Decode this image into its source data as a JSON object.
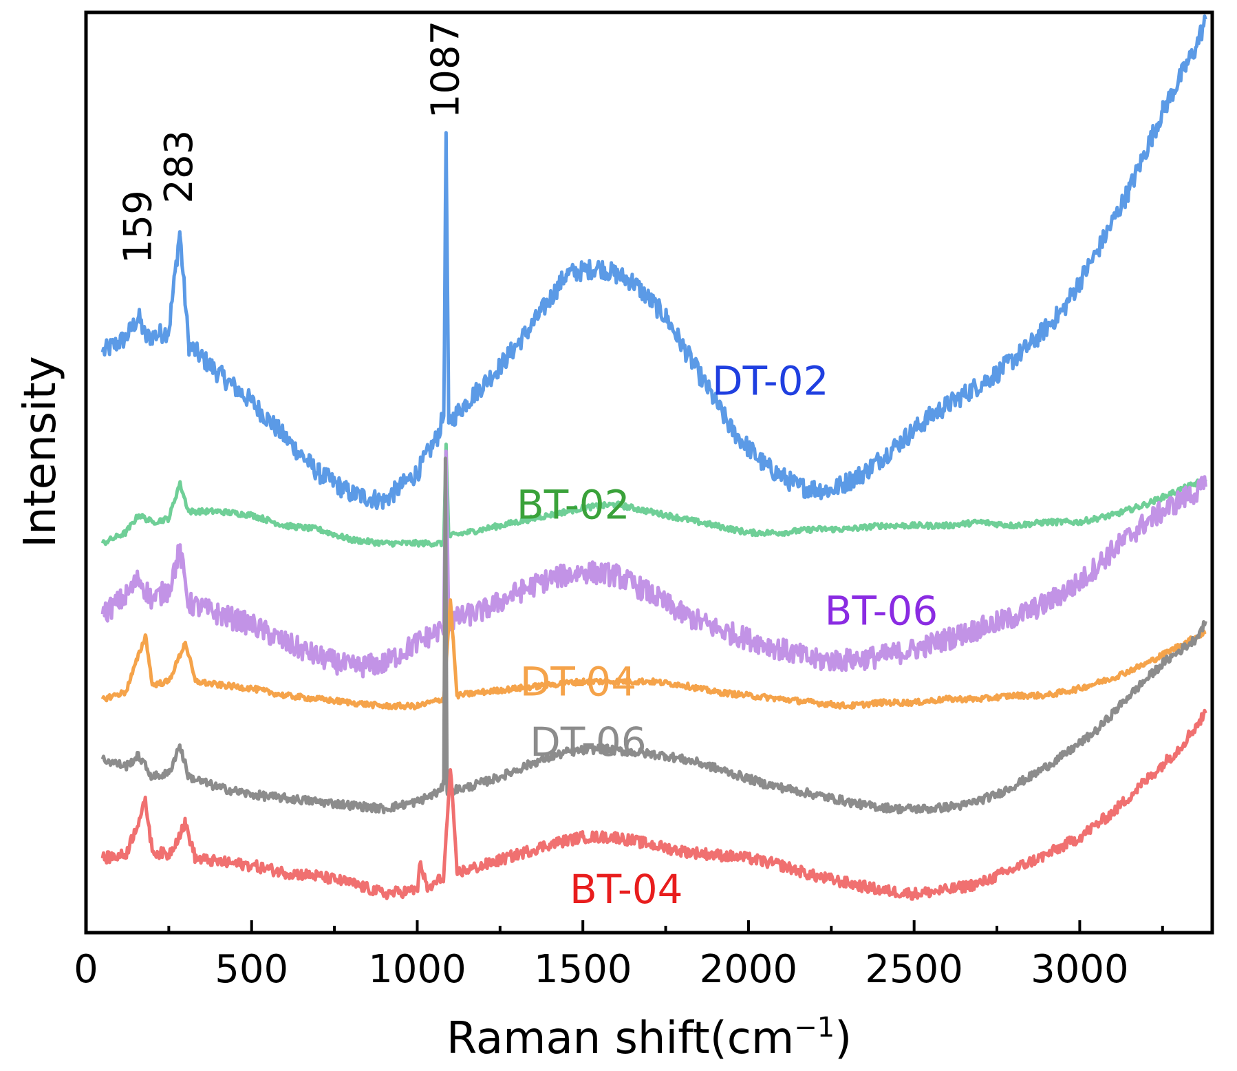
{
  "chart_data": {
    "type": "line",
    "title": "",
    "xlabel": "Raman shift(cm",
    "xlabel_sup": "−1",
    "xlabel_close": ")",
    "ylabel": "Intensity",
    "xlim": [
      0,
      3400
    ],
    "ylim": [
      0,
      13
    ],
    "x_ticks": [
      0,
      500,
      1000,
      1500,
      2000,
      2500,
      3000
    ],
    "x_tick_labels": [
      "0",
      "500",
      "1000",
      "1500",
      "2000",
      "2500",
      "3000"
    ],
    "y_ticks_shown": false,
    "peak_labels": [
      {
        "text": "159",
        "x": 159,
        "y": 9.45
      },
      {
        "text": "283",
        "x": 283,
        "y": 10.3
      },
      {
        "text": "1087",
        "x": 1087,
        "y": 11.5
      }
    ],
    "series": [
      {
        "name": "DT-02",
        "color": "#5b9ae6",
        "label_color": "#1f3fe0",
        "label_pos": {
          "x": 1890,
          "y": 7.6
        },
        "points": [
          [
            50,
            8.2
          ],
          [
            120,
            8.4
          ],
          [
            159,
            8.7
          ],
          [
            180,
            8.4
          ],
          [
            250,
            8.5
          ],
          [
            283,
            9.9
          ],
          [
            310,
            8.3
          ],
          [
            400,
            7.9
          ],
          [
            500,
            7.5
          ],
          [
            600,
            7.0
          ],
          [
            700,
            6.5
          ],
          [
            800,
            6.2
          ],
          [
            900,
            6.1
          ],
          [
            1000,
            6.5
          ],
          [
            1060,
            7.0
          ],
          [
            1080,
            7.3
          ],
          [
            1087,
            11.3
          ],
          [
            1095,
            7.2
          ],
          [
            1150,
            7.5
          ],
          [
            1250,
            8.0
          ],
          [
            1350,
            8.6
          ],
          [
            1450,
            9.3
          ],
          [
            1550,
            9.4
          ],
          [
            1650,
            9.2
          ],
          [
            1750,
            8.7
          ],
          [
            1850,
            7.9
          ],
          [
            1950,
            7.1
          ],
          [
            2050,
            6.6
          ],
          [
            2150,
            6.3
          ],
          [
            2250,
            6.25
          ],
          [
            2350,
            6.5
          ],
          [
            2450,
            6.9
          ],
          [
            2550,
            7.3
          ],
          [
            2650,
            7.6
          ],
          [
            2750,
            7.9
          ],
          [
            2850,
            8.3
          ],
          [
            2950,
            8.8
          ],
          [
            3050,
            9.6
          ],
          [
            3150,
            10.5
          ],
          [
            3250,
            11.6
          ],
          [
            3350,
            12.5
          ],
          [
            3380,
            12.9
          ]
        ]
      },
      {
        "name": "BT-02",
        "color": "#6fcf97",
        "label_color": "#3aa23a",
        "label_pos": {
          "x": 1300,
          "y": 5.85
        },
        "points": [
          [
            50,
            5.5
          ],
          [
            120,
            5.65
          ],
          [
            159,
            5.9
          ],
          [
            200,
            5.8
          ],
          [
            250,
            5.85
          ],
          [
            283,
            6.35
          ],
          [
            310,
            5.95
          ],
          [
            400,
            5.95
          ],
          [
            500,
            5.9
          ],
          [
            600,
            5.75
          ],
          [
            700,
            5.7
          ],
          [
            800,
            5.55
          ],
          [
            900,
            5.5
          ],
          [
            1000,
            5.5
          ],
          [
            1080,
            5.5
          ],
          [
            1087,
            6.9
          ],
          [
            1095,
            5.6
          ],
          [
            1200,
            5.7
          ],
          [
            1300,
            5.8
          ],
          [
            1400,
            5.9
          ],
          [
            1500,
            6.0
          ],
          [
            1600,
            6.05
          ],
          [
            1700,
            5.95
          ],
          [
            1800,
            5.85
          ],
          [
            1900,
            5.75
          ],
          [
            2000,
            5.65
          ],
          [
            2100,
            5.65
          ],
          [
            2200,
            5.7
          ],
          [
            2300,
            5.7
          ],
          [
            2400,
            5.75
          ],
          [
            2500,
            5.75
          ],
          [
            2600,
            5.75
          ],
          [
            2700,
            5.8
          ],
          [
            2800,
            5.75
          ],
          [
            2900,
            5.8
          ],
          [
            3000,
            5.8
          ],
          [
            3100,
            5.9
          ],
          [
            3200,
            6.05
          ],
          [
            3300,
            6.25
          ],
          [
            3380,
            6.4
          ]
        ]
      },
      {
        "name": "BT-06",
        "color": "#c293e6",
        "label_color": "#8a2be2",
        "label_pos": {
          "x": 2230,
          "y": 4.35
        },
        "points": [
          [
            50,
            4.5
          ],
          [
            120,
            4.75
          ],
          [
            159,
            5.0
          ],
          [
            200,
            4.7
          ],
          [
            250,
            4.85
          ],
          [
            283,
            5.4
          ],
          [
            310,
            4.65
          ],
          [
            400,
            4.5
          ],
          [
            500,
            4.35
          ],
          [
            600,
            4.1
          ],
          [
            700,
            3.9
          ],
          [
            800,
            3.75
          ],
          [
            900,
            3.8
          ],
          [
            1000,
            4.1
          ],
          [
            1080,
            4.3
          ],
          [
            1087,
            6.8
          ],
          [
            1095,
            4.4
          ],
          [
            1200,
            4.55
          ],
          [
            1300,
            4.8
          ],
          [
            1400,
            5.0
          ],
          [
            1500,
            5.1
          ],
          [
            1600,
            5.05
          ],
          [
            1700,
            4.8
          ],
          [
            1800,
            4.5
          ],
          [
            1900,
            4.3
          ],
          [
            2000,
            4.15
          ],
          [
            2100,
            4.0
          ],
          [
            2200,
            3.85
          ],
          [
            2300,
            3.85
          ],
          [
            2400,
            3.9
          ],
          [
            2500,
            4.0
          ],
          [
            2600,
            4.15
          ],
          [
            2700,
            4.3
          ],
          [
            2800,
            4.45
          ],
          [
            2900,
            4.65
          ],
          [
            3000,
            4.95
          ],
          [
            3100,
            5.4
          ],
          [
            3200,
            5.8
          ],
          [
            3300,
            6.1
          ],
          [
            3380,
            6.3
          ]
        ]
      },
      {
        "name": "DT-04",
        "color": "#f5a34a",
        "label_color": "#f5a34a",
        "label_pos": {
          "x": 1310,
          "y": 3.35
        },
        "points": [
          [
            50,
            3.3
          ],
          [
            120,
            3.4
          ],
          [
            180,
            4.2
          ],
          [
            200,
            3.5
          ],
          [
            250,
            3.55
          ],
          [
            300,
            4.1
          ],
          [
            330,
            3.55
          ],
          [
            400,
            3.5
          ],
          [
            500,
            3.45
          ],
          [
            600,
            3.35
          ],
          [
            700,
            3.3
          ],
          [
            800,
            3.25
          ],
          [
            900,
            3.2
          ],
          [
            1000,
            3.2
          ],
          [
            1080,
            3.3
          ],
          [
            1100,
            4.7
          ],
          [
            1120,
            3.35
          ],
          [
            1200,
            3.4
          ],
          [
            1300,
            3.45
          ],
          [
            1400,
            3.5
          ],
          [
            1500,
            3.55
          ],
          [
            1600,
            3.55
          ],
          [
            1700,
            3.55
          ],
          [
            1800,
            3.5
          ],
          [
            1900,
            3.4
          ],
          [
            2000,
            3.35
          ],
          [
            2100,
            3.3
          ],
          [
            2200,
            3.25
          ],
          [
            2300,
            3.2
          ],
          [
            2400,
            3.25
          ],
          [
            2500,
            3.25
          ],
          [
            2600,
            3.3
          ],
          [
            2700,
            3.3
          ],
          [
            2800,
            3.35
          ],
          [
            2900,
            3.35
          ],
          [
            3000,
            3.45
          ],
          [
            3100,
            3.6
          ],
          [
            3200,
            3.8
          ],
          [
            3300,
            4.05
          ],
          [
            3380,
            4.25
          ]
        ]
      },
      {
        "name": "DT-06",
        "color": "#8c8c8c",
        "label_color": "#8c8c8c",
        "label_pos": {
          "x": 1340,
          "y": 2.5
        },
        "points": [
          [
            50,
            2.45
          ],
          [
            120,
            2.35
          ],
          [
            159,
            2.5
          ],
          [
            200,
            2.2
          ],
          [
            250,
            2.25
          ],
          [
            283,
            2.65
          ],
          [
            310,
            2.2
          ],
          [
            400,
            2.05
          ],
          [
            500,
            1.95
          ],
          [
            600,
            1.9
          ],
          [
            700,
            1.85
          ],
          [
            800,
            1.8
          ],
          [
            900,
            1.75
          ],
          [
            1000,
            1.85
          ],
          [
            1070,
            2.0
          ],
          [
            1080,
            2.1
          ],
          [
            1085,
            6.7
          ],
          [
            1090,
            2.0
          ],
          [
            1150,
            2.05
          ],
          [
            1250,
            2.2
          ],
          [
            1350,
            2.4
          ],
          [
            1450,
            2.55
          ],
          [
            1550,
            2.6
          ],
          [
            1650,
            2.55
          ],
          [
            1750,
            2.5
          ],
          [
            1850,
            2.4
          ],
          [
            1950,
            2.25
          ],
          [
            2050,
            2.1
          ],
          [
            2150,
            2.0
          ],
          [
            2250,
            1.9
          ],
          [
            2350,
            1.8
          ],
          [
            2450,
            1.75
          ],
          [
            2550,
            1.75
          ],
          [
            2650,
            1.8
          ],
          [
            2750,
            1.95
          ],
          [
            2850,
            2.2
          ],
          [
            2950,
            2.5
          ],
          [
            3050,
            2.85
          ],
          [
            3150,
            3.35
          ],
          [
            3250,
            3.8
          ],
          [
            3350,
            4.15
          ],
          [
            3380,
            4.4
          ]
        ]
      },
      {
        "name": "BT-04",
        "color": "#f07070",
        "label_color": "#e81d1d",
        "label_pos": {
          "x": 1460,
          "y": 0.42
        },
        "points": [
          [
            50,
            1.05
          ],
          [
            120,
            1.1
          ],
          [
            180,
            1.85
          ],
          [
            200,
            1.15
          ],
          [
            250,
            1.1
          ],
          [
            300,
            1.55
          ],
          [
            330,
            1.05
          ],
          [
            400,
            1.0
          ],
          [
            500,
            0.95
          ],
          [
            600,
            0.85
          ],
          [
            700,
            0.8
          ],
          [
            800,
            0.7
          ],
          [
            900,
            0.55
          ],
          [
            1000,
            0.6
          ],
          [
            1010,
            1.0
          ],
          [
            1030,
            0.6
          ],
          [
            1080,
            0.8
          ],
          [
            1100,
            2.3
          ],
          [
            1120,
            0.85
          ],
          [
            1200,
            0.95
          ],
          [
            1300,
            1.1
          ],
          [
            1400,
            1.25
          ],
          [
            1500,
            1.35
          ],
          [
            1600,
            1.35
          ],
          [
            1700,
            1.25
          ],
          [
            1800,
            1.15
          ],
          [
            1900,
            1.1
          ],
          [
            2000,
            1.05
          ],
          [
            2100,
            0.95
          ],
          [
            2200,
            0.8
          ],
          [
            2300,
            0.7
          ],
          [
            2400,
            0.6
          ],
          [
            2500,
            0.55
          ],
          [
            2600,
            0.6
          ],
          [
            2700,
            0.7
          ],
          [
            2800,
            0.9
          ],
          [
            2900,
            1.1
          ],
          [
            3000,
            1.35
          ],
          [
            3100,
            1.7
          ],
          [
            3200,
            2.15
          ],
          [
            3300,
            2.6
          ],
          [
            3380,
            3.1
          ]
        ]
      }
    ]
  }
}
